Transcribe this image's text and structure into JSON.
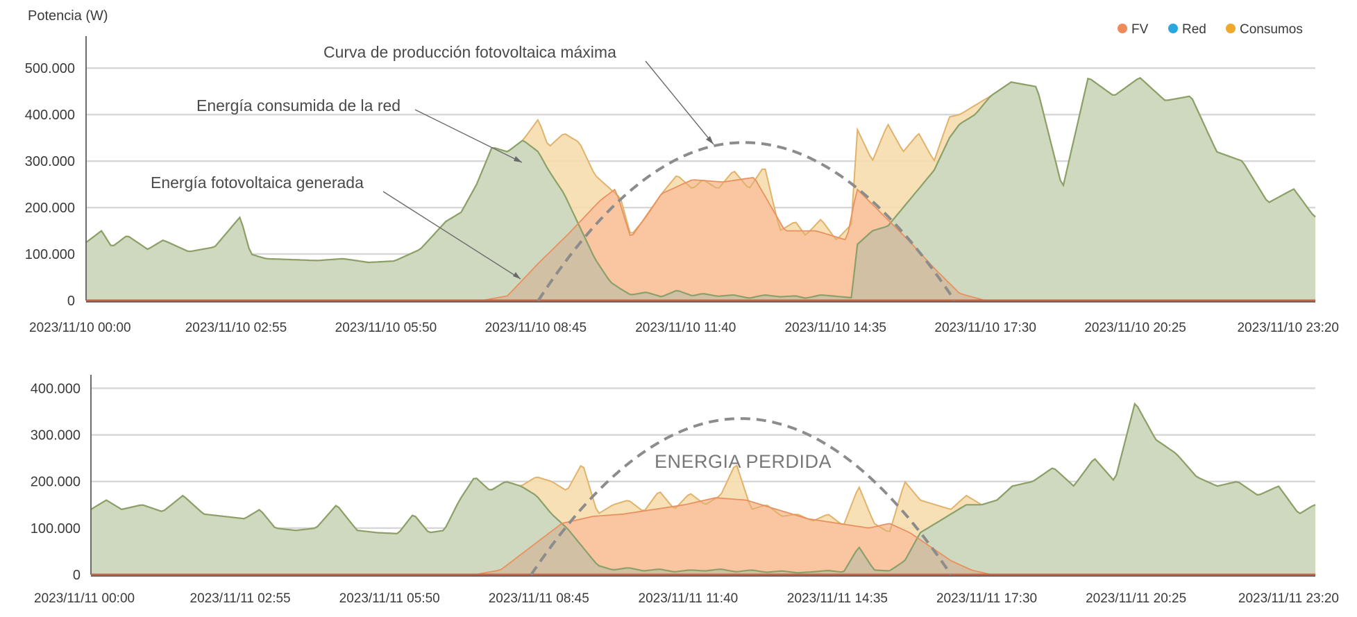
{
  "colors": {
    "fv": "#ef8a5b",
    "red": "#2aa7e1",
    "consumos": "#f0a92a",
    "consumo_fill": "#f6dcae",
    "consumo_line": "#e0b26b",
    "red_fill": "#cfd9bf",
    "red_line": "#8ba069",
    "fv_fill": "#f8c3a0",
    "overlap_fill": "#cfc0a3",
    "curve": "#8c8c8c",
    "grid": "#d7d7d7"
  },
  "chart_data": [
    {
      "type": "area",
      "title": "",
      "ylabel": "Potencia (W)",
      "xlabel": "",
      "ylim": [
        0,
        560000
      ],
      "yticks": [
        "0",
        "100.000",
        "200.000",
        "300.000",
        "400.000",
        "500.000"
      ],
      "ytick_values": [
        0,
        100000,
        200000,
        300000,
        400000,
        500000
      ],
      "xlim_hours": [
        0,
        23.92
      ],
      "xticks": [
        "2023/11/10 00:00",
        "2023/11/10 02:55",
        "2023/11/10 05:50",
        "2023/11/10 08:45",
        "2023/11/10 11:40",
        "2023/11/10 14:35",
        "2023/11/10 17:30",
        "2023/11/10 20:25",
        "2023/11/10 23:20"
      ],
      "xtick_hours": [
        0,
        2.9167,
        5.8333,
        8.75,
        11.6667,
        14.5833,
        17.5,
        20.4167,
        23.3333
      ],
      "legend": [
        {
          "label": "FV",
          "color_key": "fv"
        },
        {
          "label": "Red",
          "color_key": "red"
        },
        {
          "label": "Consumos",
          "color_key": "consumos"
        }
      ],
      "annotations": [
        {
          "text": "Curva de producción fotovoltaica máxima"
        },
        {
          "text": "Energía consumida de la red"
        },
        {
          "text": "Energía fotovoltaica generada"
        }
      ],
      "max_pv_curve": {
        "peak_hour": 12.8,
        "peak_value": 340000,
        "start_hour": 8.8,
        "end_hour": 16.9
      },
      "series": [
        {
          "name": "Consumos",
          "x_hours": [
            0,
            0.3,
            0.5,
            0.8,
            1.2,
            1.5,
            2.0,
            2.5,
            3.0,
            3.2,
            3.5,
            4.0,
            4.5,
            5.0,
            5.5,
            6.0,
            6.5,
            7.0,
            7.3,
            7.6,
            7.9,
            8.2,
            8.5,
            8.8,
            9.0,
            9.3,
            9.6,
            9.9,
            10.2,
            10.4,
            10.6,
            10.9,
            11.2,
            11.5,
            11.8,
            12.0,
            12.3,
            12.6,
            12.9,
            13.2,
            13.5,
            13.8,
            14.0,
            14.3,
            14.6,
            14.9,
            15.0,
            15.3,
            15.6,
            15.9,
            16.2,
            16.5,
            16.8,
            17.0,
            17.3,
            17.6,
            18.0,
            18.5,
            19.0,
            19.5,
            20.0,
            20.5,
            21.0,
            21.5,
            22.0,
            22.5,
            23.0,
            23.5,
            23.9
          ],
          "values": [
            125000,
            150000,
            115000,
            140000,
            110000,
            130000,
            105000,
            115000,
            180000,
            100000,
            90000,
            88000,
            86000,
            90000,
            82000,
            85000,
            110000,
            170000,
            190000,
            250000,
            330000,
            320000,
            345000,
            390000,
            330000,
            360000,
            340000,
            270000,
            240000,
            220000,
            140000,
            180000,
            230000,
            270000,
            240000,
            260000,
            240000,
            280000,
            240000,
            290000,
            150000,
            170000,
            140000,
            175000,
            130000,
            165000,
            370000,
            300000,
            380000,
            320000,
            360000,
            300000,
            395000,
            400000,
            420000,
            440000,
            470000,
            460000,
            240000,
            480000,
            440000,
            480000,
            430000,
            440000,
            320000,
            300000,
            210000,
            240000,
            180000
          ]
        },
        {
          "name": "Red",
          "x_hours": [
            0,
            0.3,
            0.5,
            0.8,
            1.2,
            1.5,
            2.0,
            2.5,
            3.0,
            3.2,
            3.5,
            4.0,
            4.5,
            5.0,
            5.5,
            6.0,
            6.5,
            7.0,
            7.3,
            7.6,
            7.9,
            8.2,
            8.5,
            8.8,
            9.0,
            9.3,
            9.6,
            9.9,
            10.2,
            10.4,
            10.6,
            10.9,
            11.2,
            11.5,
            11.8,
            12.0,
            12.3,
            12.6,
            12.9,
            13.2,
            13.5,
            13.8,
            14.0,
            14.3,
            14.6,
            14.9,
            15.0,
            15.3,
            15.6,
            15.9,
            16.2,
            16.5,
            16.8,
            17.0,
            17.3,
            17.6,
            18.0,
            18.5,
            19.0,
            19.5,
            20.0,
            20.5,
            21.0,
            21.5,
            22.0,
            22.5,
            23.0,
            23.5,
            23.9
          ],
          "values": [
            125000,
            150000,
            115000,
            140000,
            110000,
            130000,
            105000,
            115000,
            180000,
            100000,
            90000,
            88000,
            86000,
            90000,
            82000,
            85000,
            110000,
            170000,
            190000,
            250000,
            330000,
            320000,
            345000,
            320000,
            280000,
            230000,
            160000,
            90000,
            40000,
            25000,
            12000,
            18000,
            8000,
            22000,
            10000,
            15000,
            9000,
            12000,
            5000,
            12000,
            8000,
            10000,
            5000,
            12000,
            9000,
            6000,
            120000,
            150000,
            160000,
            200000,
            240000,
            280000,
            350000,
            380000,
            400000,
            440000,
            470000,
            460000,
            240000,
            480000,
            440000,
            480000,
            430000,
            440000,
            320000,
            300000,
            210000,
            240000,
            180000
          ]
        },
        {
          "name": "FV",
          "x_hours": [
            0,
            7.7,
            8.2,
            8.8,
            9.4,
            10.0,
            10.3,
            10.6,
            11.2,
            11.8,
            12.4,
            13.0,
            13.6,
            14.2,
            14.8,
            15.0,
            15.5,
            16.0,
            16.5,
            17.0,
            17.5,
            23.9
          ],
          "values": [
            0,
            0,
            10000,
            80000,
            145000,
            215000,
            240000,
            135000,
            230000,
            260000,
            255000,
            265000,
            150000,
            150000,
            130000,
            240000,
            185000,
            130000,
            70000,
            15000,
            0,
            0
          ]
        }
      ]
    },
    {
      "type": "area",
      "title": "",
      "ylabel": "",
      "xlabel": "",
      "ylim": [
        0,
        420000
      ],
      "yticks": [
        "0",
        "100.000",
        "200.000",
        "300.000",
        "400.000"
      ],
      "ytick_values": [
        0,
        100000,
        200000,
        300000,
        400000
      ],
      "xlim_hours": [
        0,
        23.92
      ],
      "xticks": [
        "2023/11/11 00:00",
        "2023/11/11 02:55",
        "2023/11/11 05:50",
        "2023/11/11 08:45",
        "2023/11/11 11:40",
        "2023/11/11 14:35",
        "2023/11/11 17:30",
        "2023/11/11 20:25",
        "2023/11/11 23:20"
      ],
      "xtick_hours": [
        0,
        2.9167,
        5.8333,
        8.75,
        11.6667,
        14.5833,
        17.5,
        20.4167,
        23.3333
      ],
      "annotations": [
        {
          "text": "ENERGIA PERDIDA"
        }
      ],
      "max_pv_curve": {
        "peak_hour": 12.7,
        "peak_value": 335000,
        "start_hour": 8.6,
        "end_hour": 16.8
      },
      "series": [
        {
          "name": "Consumos",
          "x_hours": [
            0,
            0.3,
            0.6,
            1.0,
            1.4,
            1.8,
            2.2,
            2.6,
            3.0,
            3.3,
            3.6,
            4.0,
            4.4,
            4.8,
            5.2,
            5.6,
            6.0,
            6.3,
            6.6,
            6.9,
            7.2,
            7.5,
            7.8,
            8.1,
            8.4,
            8.7,
            9.0,
            9.3,
            9.6,
            9.9,
            10.2,
            10.5,
            10.8,
            11.1,
            11.4,
            11.7,
            12.0,
            12.3,
            12.6,
            12.9,
            13.2,
            13.5,
            13.8,
            14.1,
            14.4,
            14.7,
            15.0,
            15.3,
            15.6,
            15.9,
            16.2,
            16.5,
            16.8,
            17.1,
            17.4,
            17.7,
            18.0,
            18.4,
            18.8,
            19.2,
            19.6,
            20.0,
            20.4,
            20.8,
            21.2,
            21.6,
            22.0,
            22.4,
            22.8,
            23.2,
            23.6,
            23.9
          ],
          "values": [
            140000,
            160000,
            140000,
            150000,
            135000,
            170000,
            130000,
            125000,
            120000,
            140000,
            100000,
            95000,
            100000,
            150000,
            95000,
            90000,
            88000,
            130000,
            90000,
            95000,
            160000,
            210000,
            180000,
            200000,
            190000,
            210000,
            200000,
            180000,
            240000,
            130000,
            150000,
            160000,
            135000,
            180000,
            140000,
            175000,
            150000,
            170000,
            240000,
            140000,
            150000,
            125000,
            130000,
            115000,
            130000,
            105000,
            190000,
            110000,
            90000,
            200000,
            160000,
            150000,
            140000,
            170000,
            150000,
            160000,
            190000,
            200000,
            230000,
            190000,
            250000,
            200000,
            370000,
            290000,
            260000,
            210000,
            190000,
            200000,
            170000,
            190000,
            130000,
            150000
          ]
        },
        {
          "name": "Red",
          "x_hours": [
            0,
            0.3,
            0.6,
            1.0,
            1.4,
            1.8,
            2.2,
            2.6,
            3.0,
            3.3,
            3.6,
            4.0,
            4.4,
            4.8,
            5.2,
            5.6,
            6.0,
            6.3,
            6.6,
            6.9,
            7.2,
            7.5,
            7.8,
            8.1,
            8.4,
            8.7,
            9.0,
            9.3,
            9.6,
            9.9,
            10.2,
            10.5,
            10.8,
            11.1,
            11.4,
            11.7,
            12.0,
            12.3,
            12.6,
            12.9,
            13.2,
            13.5,
            13.8,
            14.1,
            14.4,
            14.7,
            15.0,
            15.3,
            15.6,
            15.9,
            16.2,
            16.5,
            16.8,
            17.1,
            17.4,
            17.7,
            18.0,
            18.4,
            18.8,
            19.2,
            19.6,
            20.0,
            20.4,
            20.8,
            21.2,
            21.6,
            22.0,
            22.4,
            22.8,
            23.2,
            23.6,
            23.9
          ],
          "values": [
            140000,
            160000,
            140000,
            150000,
            135000,
            170000,
            130000,
            125000,
            120000,
            140000,
            100000,
            95000,
            100000,
            150000,
            95000,
            90000,
            88000,
            130000,
            90000,
            95000,
            160000,
            210000,
            180000,
            200000,
            190000,
            170000,
            130000,
            100000,
            60000,
            20000,
            10000,
            15000,
            8000,
            12000,
            6000,
            10000,
            8000,
            12000,
            6000,
            10000,
            5000,
            8000,
            4000,
            6000,
            9000,
            5000,
            60000,
            10000,
            8000,
            30000,
            90000,
            110000,
            130000,
            150000,
            150000,
            160000,
            190000,
            200000,
            230000,
            190000,
            250000,
            200000,
            370000,
            290000,
            260000,
            210000,
            190000,
            200000,
            170000,
            190000,
            130000,
            150000
          ]
        },
        {
          "name": "FV",
          "x_hours": [
            0,
            7.5,
            8.0,
            8.6,
            9.2,
            9.8,
            10.4,
            11.0,
            11.6,
            12.2,
            12.8,
            13.4,
            14.0,
            14.6,
            15.2,
            15.6,
            16.0,
            16.4,
            16.8,
            17.2,
            17.6,
            23.9
          ],
          "values": [
            0,
            0,
            10000,
            60000,
            110000,
            125000,
            130000,
            140000,
            150000,
            165000,
            160000,
            140000,
            120000,
            110000,
            100000,
            110000,
            90000,
            60000,
            30000,
            10000,
            0,
            0
          ]
        }
      ]
    }
  ]
}
